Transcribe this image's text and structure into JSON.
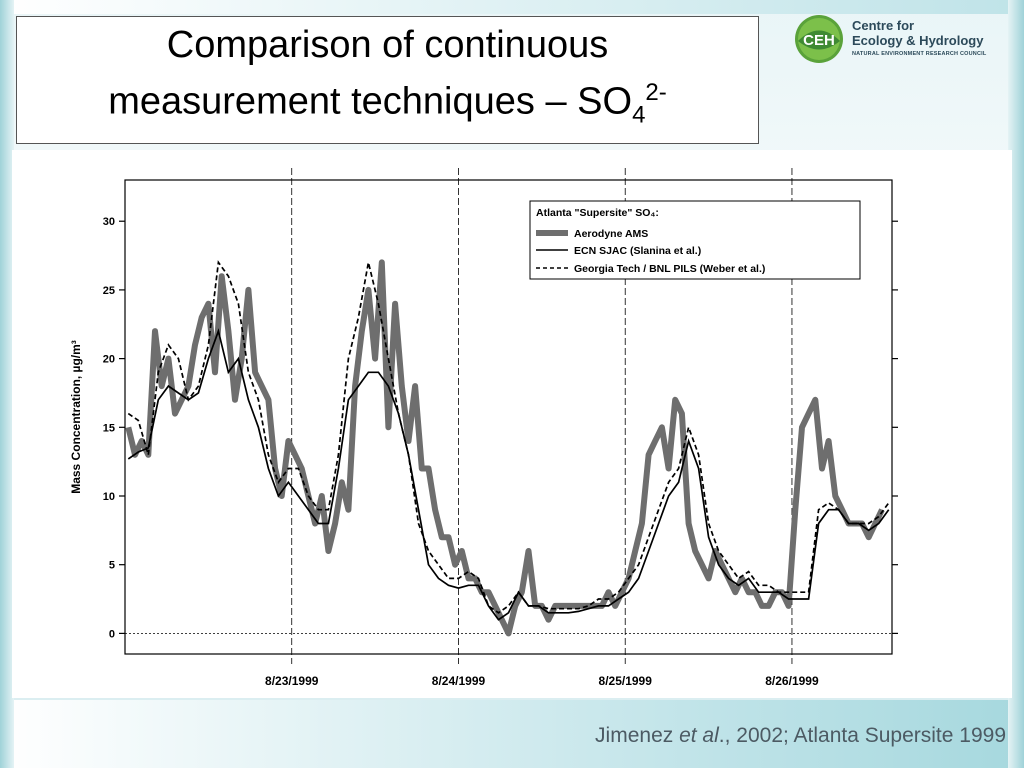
{
  "slide": {
    "title_line1": "Comparison of continuous",
    "title_line2_main": "measurement techniques – SO",
    "title_sub": "4",
    "title_sup": "2-",
    "caption_pre": "Jimenez ",
    "caption_em": "et al",
    "caption_post": "., 2002; Atlanta Supersite 1999"
  },
  "logo": {
    "mark": "CEH",
    "line1": "Centre for",
    "line2": "Ecology & Hydrology",
    "line3": "NATURAL ENVIRONMENT RESEARCH COUNCIL"
  },
  "chart_data": {
    "type": "line",
    "ylabel": "Mass Concentration, µg/m³",
    "ylim": [
      -1.5,
      33
    ],
    "yticks": [
      0,
      5,
      10,
      15,
      20,
      25,
      30
    ],
    "xlim": [
      0,
      4.6
    ],
    "xticks": [
      {
        "value": 1,
        "label": "8/23/1999"
      },
      {
        "value": 2,
        "label": "8/24/1999"
      },
      {
        "value": 3,
        "label": "8/25/1999"
      },
      {
        "value": 4,
        "label": "8/26/1999"
      }
    ],
    "legend": {
      "position": "top-right",
      "title": "Atlanta \"Supersite\" SO₄:"
    },
    "colors": {
      "ams": "#6e6e6e",
      "sjac": "#000000",
      "pils": "#000000"
    },
    "series": [
      {
        "name": "Aerodyne AMS",
        "style": "thick-grey",
        "x": [
          0.02,
          0.06,
          0.1,
          0.14,
          0.18,
          0.22,
          0.26,
          0.3,
          0.34,
          0.38,
          0.42,
          0.46,
          0.5,
          0.54,
          0.58,
          0.62,
          0.66,
          0.7,
          0.74,
          0.78,
          0.82,
          0.86,
          0.9,
          0.94,
          0.98,
          1.02,
          1.06,
          1.1,
          1.14,
          1.18,
          1.22,
          1.26,
          1.3,
          1.34,
          1.38,
          1.42,
          1.46,
          1.5,
          1.54,
          1.58,
          1.62,
          1.66,
          1.7,
          1.74,
          1.78,
          1.82,
          1.86,
          1.9,
          1.94,
          1.98,
          2.02,
          2.06,
          2.1,
          2.14,
          2.18,
          2.22,
          2.26,
          2.3,
          2.34,
          2.38,
          2.42,
          2.46,
          2.5,
          2.54,
          2.58,
          2.62,
          2.66,
          2.7,
          2.74,
          2.78,
          2.82,
          2.86,
          2.9,
          2.94,
          2.98,
          3.02,
          3.06,
          3.1,
          3.14,
          3.18,
          3.22,
          3.26,
          3.3,
          3.34,
          3.38,
          3.42,
          3.46,
          3.5,
          3.54,
          3.58,
          3.62,
          3.66,
          3.7,
          3.74,
          3.78,
          3.82,
          3.86,
          3.9,
          3.94,
          3.98,
          4.02,
          4.06,
          4.1,
          4.14,
          4.18,
          4.22,
          4.26,
          4.3,
          4.34,
          4.38,
          4.42,
          4.46,
          4.5,
          4.54
        ],
        "y": [
          15,
          13,
          14,
          13,
          22,
          18,
          20,
          16,
          17,
          18,
          21,
          23,
          24,
          19,
          26,
          22,
          17,
          20,
          25,
          19,
          18,
          17,
          12,
          10,
          14,
          13,
          12,
          10,
          8,
          10,
          6,
          8,
          11,
          9,
          18,
          22,
          25,
          20,
          27,
          15,
          24,
          18,
          14,
          18,
          12,
          12,
          9,
          7,
          7,
          5,
          6,
          4,
          4,
          3,
          3,
          2,
          1,
          0,
          2,
          3,
          6,
          2,
          2,
          1,
          2,
          2,
          2,
          2,
          2,
          2,
          2,
          2,
          3,
          2,
          3,
          4,
          6,
          8,
          13,
          14,
          15,
          12,
          17,
          16,
          8,
          6,
          5,
          4,
          6,
          5,
          4,
          3,
          4,
          3,
          3,
          2,
          2,
          3,
          3,
          2,
          9,
          15,
          16,
          17,
          12,
          14,
          10,
          9,
          8,
          8,
          8,
          7,
          8,
          9
        ]
      },
      {
        "name": "ECN SJAC (Slanina et al.)",
        "style": "solid",
        "x": [
          0.02,
          0.08,
          0.14,
          0.2,
          0.26,
          0.32,
          0.38,
          0.44,
          0.5,
          0.56,
          0.62,
          0.68,
          0.74,
          0.8,
          0.86,
          0.92,
          0.98,
          1.04,
          1.1,
          1.16,
          1.22,
          1.28,
          1.34,
          1.4,
          1.46,
          1.52,
          1.58,
          1.64,
          1.7,
          1.76,
          1.82,
          1.88,
          1.94,
          2.0,
          2.06,
          2.12,
          2.18,
          2.24,
          2.3,
          2.36,
          2.42,
          2.48,
          2.54,
          2.6,
          2.66,
          2.72,
          2.78,
          2.84,
          2.9,
          2.96,
          3.02,
          3.08,
          3.14,
          3.2,
          3.26,
          3.32,
          3.38,
          3.44,
          3.5,
          3.56,
          3.62,
          3.68,
          3.74,
          3.8,
          3.86,
          3.92,
          3.98,
          4.04,
          4.1,
          4.16,
          4.22,
          4.28,
          4.34,
          4.4,
          4.46,
          4.52,
          4.58
        ],
        "y": [
          12.7,
          13.2,
          13.5,
          17,
          18,
          17.5,
          17,
          17.5,
          20,
          22,
          19,
          20,
          17,
          15,
          12,
          10,
          11,
          10,
          9,
          8,
          8,
          12,
          17,
          18,
          19,
          19,
          18,
          16,
          13,
          9,
          5,
          4,
          3.5,
          3.3,
          3.5,
          3.5,
          2,
          1,
          1.5,
          3,
          2,
          2,
          1.5,
          1.5,
          1.5,
          1.6,
          1.8,
          2,
          2,
          2.5,
          3,
          4,
          6,
          8,
          10,
          11,
          14,
          12,
          7,
          5,
          4,
          3.5,
          4,
          3,
          3,
          3,
          2.5,
          2.5,
          2.5,
          8,
          9,
          9,
          8,
          8,
          7.5,
          8,
          9
        ]
      },
      {
        "name": "Georgia Tech / BNL PILS (Weber et al.)",
        "style": "dashed",
        "x": [
          0.02,
          0.08,
          0.14,
          0.2,
          0.26,
          0.32,
          0.38,
          0.44,
          0.5,
          0.56,
          0.62,
          0.68,
          0.74,
          0.8,
          0.86,
          0.92,
          0.98,
          1.04,
          1.1,
          1.16,
          1.22,
          1.28,
          1.34,
          1.4,
          1.46,
          1.52,
          1.58,
          1.64,
          1.7,
          1.76,
          1.82,
          1.88,
          1.94,
          2.0,
          2.06,
          2.12,
          2.18,
          2.24,
          2.3,
          2.36,
          2.42,
          2.48,
          2.54,
          2.6,
          2.66,
          2.72,
          2.78,
          2.84,
          2.9,
          2.96,
          3.02,
          3.08,
          3.14,
          3.2,
          3.26,
          3.32,
          3.38,
          3.44,
          3.5,
          3.56,
          3.62,
          3.68,
          3.74,
          3.8,
          3.86,
          3.92,
          3.98,
          4.04,
          4.1,
          4.16,
          4.22,
          4.28,
          4.34,
          4.4,
          4.46,
          4.52,
          4.58
        ],
        "y": [
          16,
          15.5,
          13,
          19,
          21,
          20,
          17,
          18,
          21,
          27,
          26,
          24,
          19,
          17,
          13,
          11,
          12,
          12,
          10,
          9,
          9,
          13,
          20,
          23,
          27,
          24,
          20,
          16,
          13,
          8,
          6,
          5,
          4,
          4,
          4.5,
          4,
          2,
          1.5,
          2,
          3,
          2,
          2,
          1.8,
          1.8,
          1.8,
          1.8,
          2,
          2.5,
          2.5,
          3,
          4,
          5,
          7,
          9,
          11,
          12,
          15,
          13,
          8,
          6,
          5,
          4,
          4.5,
          3.5,
          3.5,
          3,
          3,
          3,
          3,
          9,
          9.5,
          9,
          8,
          8,
          8,
          8.5,
          9.5
        ]
      }
    ]
  }
}
